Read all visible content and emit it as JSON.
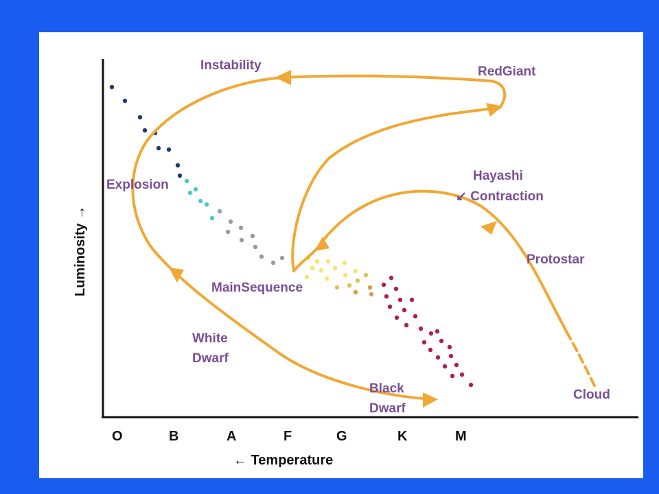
{
  "colors": {
    "background": "#1a5cf0",
    "panel": "#ffffff",
    "track": "#f0a835",
    "label": "#7a4f95",
    "axis": "#111111"
  },
  "axes": {
    "y_label": "Luminosity →",
    "x_label": "← Temperature",
    "classes": [
      "O",
      "B",
      "A",
      "F",
      "G",
      "K",
      "M"
    ]
  },
  "labels": {
    "instability": "Instability",
    "red_giant": "RedGiant",
    "explosion": "Explosion",
    "hayashi_1": "Hayashi",
    "hayashi_2": "↙ Contraction",
    "protostar": "Protostar",
    "main_sequence": "MainSequence",
    "white_dwarf_1": "White",
    "white_dwarf_2": "Dwarf",
    "black_dwarf_1": "Black",
    "black_dwarf_2": "Dwarf",
    "cloud": "Cloud"
  }
}
